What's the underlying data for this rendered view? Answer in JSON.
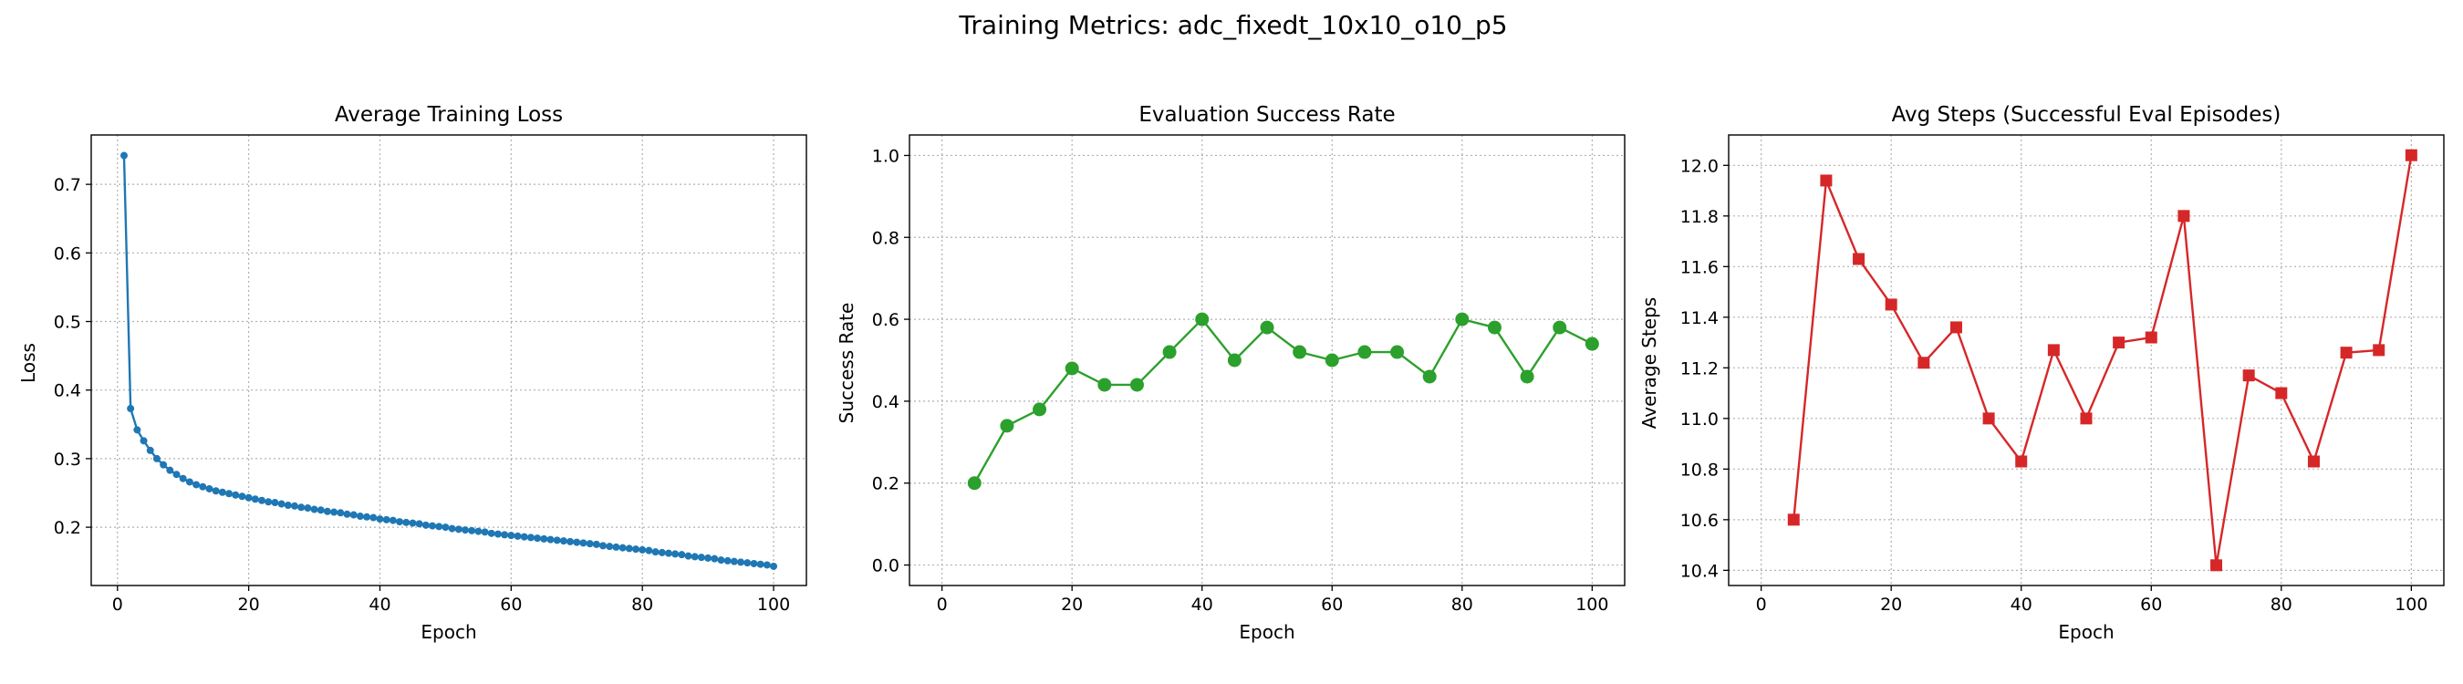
{
  "figure": {
    "suptitle": "Training Metrics: adc_fixedt_10x10_o10_p5"
  },
  "chart_data": [
    {
      "type": "line",
      "title": "Average Training Loss",
      "xlabel": "Epoch",
      "ylabel": "Loss",
      "color": "#1f77b4",
      "marker": "circle-small",
      "grid": true,
      "xlim": [
        -4,
        105
      ],
      "ylim": [
        0.115,
        0.772
      ],
      "xticks": [
        0,
        20,
        40,
        60,
        80,
        100
      ],
      "yticks": [
        0.2,
        0.3,
        0.4,
        0.5,
        0.6,
        0.7
      ],
      "ytick_format": "1",
      "x": [
        1,
        2,
        3,
        4,
        5,
        6,
        7,
        8,
        9,
        10,
        11,
        12,
        13,
        14,
        15,
        16,
        17,
        18,
        19,
        20,
        21,
        22,
        23,
        24,
        25,
        26,
        27,
        28,
        29,
        30,
        31,
        32,
        33,
        34,
        35,
        36,
        37,
        38,
        39,
        40,
        41,
        42,
        43,
        44,
        45,
        46,
        47,
        48,
        49,
        50,
        51,
        52,
        53,
        54,
        55,
        56,
        57,
        58,
        59,
        60,
        61,
        62,
        63,
        64,
        65,
        66,
        67,
        68,
        69,
        70,
        71,
        72,
        73,
        74,
        75,
        76,
        77,
        78,
        79,
        80,
        81,
        82,
        83,
        84,
        85,
        86,
        87,
        88,
        89,
        90,
        91,
        92,
        93,
        94,
        95,
        96,
        97,
        98,
        99,
        100
      ],
      "y": [
        0.742,
        0.373,
        0.342,
        0.326,
        0.312,
        0.3,
        0.291,
        0.283,
        0.277,
        0.271,
        0.266,
        0.262,
        0.259,
        0.256,
        0.253,
        0.251,
        0.249,
        0.247,
        0.245,
        0.243,
        0.241,
        0.239,
        0.237,
        0.236,
        0.234,
        0.232,
        0.231,
        0.229,
        0.228,
        0.226,
        0.225,
        0.223,
        0.222,
        0.221,
        0.219,
        0.218,
        0.216,
        0.215,
        0.214,
        0.212,
        0.211,
        0.21,
        0.208,
        0.207,
        0.206,
        0.205,
        0.203,
        0.202,
        0.201,
        0.2,
        0.198,
        0.197,
        0.196,
        0.195,
        0.194,
        0.193,
        0.191,
        0.19,
        0.189,
        0.188,
        0.187,
        0.186,
        0.185,
        0.184,
        0.183,
        0.182,
        0.181,
        0.18,
        0.179,
        0.178,
        0.177,
        0.176,
        0.175,
        0.173,
        0.172,
        0.171,
        0.17,
        0.169,
        0.168,
        0.167,
        0.166,
        0.164,
        0.163,
        0.162,
        0.161,
        0.16,
        0.158,
        0.157,
        0.156,
        0.155,
        0.154,
        0.152,
        0.151,
        0.15,
        0.149,
        0.148,
        0.147,
        0.146,
        0.145,
        0.143
      ]
    },
    {
      "type": "line",
      "title": "Evaluation Success Rate",
      "xlabel": "Epoch",
      "ylabel": "Success Rate",
      "color": "#2ca02c",
      "marker": "circle",
      "grid": true,
      "xlim": [
        -5,
        105
      ],
      "ylim": [
        -0.05,
        1.05
      ],
      "xticks": [
        0,
        20,
        40,
        60,
        80,
        100
      ],
      "yticks": [
        0.0,
        0.2,
        0.4,
        0.6,
        0.8,
        1.0
      ],
      "ytick_format": "1",
      "x": [
        5,
        10,
        15,
        20,
        25,
        30,
        35,
        40,
        45,
        50,
        55,
        60,
        65,
        70,
        75,
        80,
        85,
        90,
        95,
        100
      ],
      "y": [
        0.2,
        0.34,
        0.38,
        0.48,
        0.44,
        0.44,
        0.52,
        0.6,
        0.5,
        0.58,
        0.52,
        0.5,
        0.52,
        0.52,
        0.46,
        0.6,
        0.58,
        0.46,
        0.58,
        0.54
      ]
    },
    {
      "type": "line",
      "title": "Avg Steps (Successful Eval Episodes)",
      "xlabel": "Epoch",
      "ylabel": "Average Steps",
      "color": "#d62728",
      "marker": "square",
      "grid": true,
      "xlim": [
        -5,
        105
      ],
      "ylim": [
        10.34,
        12.12
      ],
      "xticks": [
        0,
        20,
        40,
        60,
        80,
        100
      ],
      "yticks": [
        10.4,
        10.6,
        10.8,
        11.0,
        11.2,
        11.4,
        11.6,
        11.8,
        12.0
      ],
      "ytick_format": "1",
      "x": [
        5,
        10,
        15,
        20,
        25,
        30,
        35,
        40,
        45,
        50,
        55,
        60,
        65,
        70,
        75,
        80,
        85,
        90,
        95,
        100
      ],
      "y": [
        10.6,
        11.94,
        11.63,
        11.45,
        11.22,
        11.36,
        11.0,
        10.83,
        11.27,
        11.0,
        11.3,
        11.32,
        11.8,
        10.42,
        11.17,
        11.1,
        10.83,
        11.26,
        11.27,
        12.04
      ]
    }
  ]
}
